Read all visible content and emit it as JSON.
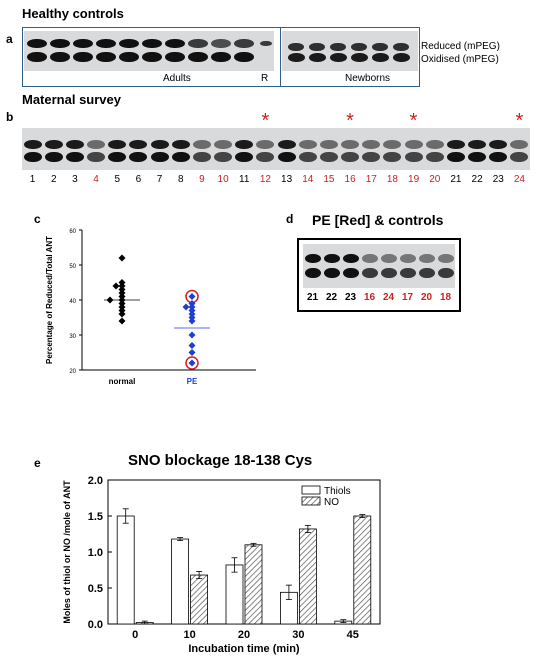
{
  "panels": {
    "a": {
      "letter": "a",
      "title": "Healthy controls",
      "legend": [
        "Reduced (mPEG)",
        "Oxidised (mPEG)"
      ],
      "labels": {
        "adults": "Adults",
        "reference": "R",
        "newborns": "Newborns"
      }
    },
    "b": {
      "letter": "b",
      "title": "Maternal survey",
      "lanes": [
        {
          "n": "1",
          "red": false
        },
        {
          "n": "2",
          "red": false
        },
        {
          "n": "3",
          "red": false
        },
        {
          "n": "4",
          "red": true
        },
        {
          "n": "5",
          "red": false
        },
        {
          "n": "6",
          "red": false
        },
        {
          "n": "7",
          "red": false
        },
        {
          "n": "8",
          "red": false
        },
        {
          "n": "9",
          "red": true
        },
        {
          "n": "10",
          "red": true
        },
        {
          "n": "11",
          "red": false
        },
        {
          "n": "12",
          "red": true
        },
        {
          "n": "13",
          "red": false
        },
        {
          "n": "14",
          "red": true
        },
        {
          "n": "15",
          "red": true
        },
        {
          "n": "16",
          "red": true
        },
        {
          "n": "17",
          "red": true
        },
        {
          "n": "18",
          "red": true
        },
        {
          "n": "19",
          "red": true
        },
        {
          "n": "20",
          "red": true
        },
        {
          "n": "21",
          "red": false
        },
        {
          "n": "22",
          "red": false
        },
        {
          "n": "23",
          "red": false
        },
        {
          "n": "24",
          "red": true
        }
      ],
      "asterisk": "*",
      "asterisk_lanes": [
        "12",
        "16",
        "19",
        "24"
      ]
    },
    "c": {
      "letter": "c",
      "chart_data": {
        "type": "scatter",
        "ylabel": "Percentage of Reduced/Total ANT",
        "ylim": [
          20,
          60
        ],
        "yticks": [
          "20",
          "30",
          "40",
          "50",
          "60"
        ],
        "categories": [
          "normal",
          "PE"
        ],
        "colors": {
          "normal": "#000000",
          "PE": "#1f3fd0",
          "circle": "#d22020"
        },
        "series": [
          {
            "category": "normal",
            "values": [
              52,
              45,
              44,
              44,
              43,
              42,
              41,
              40,
              40,
              39,
              38,
              37,
              36,
              34
            ],
            "mean": 40
          },
          {
            "category": "PE",
            "values": [
              41,
              39,
              38,
              38,
              37,
              36,
              35,
              34,
              30,
              27,
              25,
              22
            ],
            "mean": 32,
            "circled": [
              41,
              22
            ]
          }
        ]
      }
    },
    "d": {
      "letter": "d",
      "title": "PE [Red] & controls",
      "lanes": [
        {
          "n": "21",
          "red": false
        },
        {
          "n": "22",
          "red": false
        },
        {
          "n": "23",
          "red": false
        },
        {
          "n": "16",
          "red": true
        },
        {
          "n": "24",
          "red": true
        },
        {
          "n": "17",
          "red": true
        },
        {
          "n": "20",
          "red": true
        },
        {
          "n": "18",
          "red": true
        }
      ]
    },
    "e": {
      "letter": "e",
      "chart_data": {
        "type": "bar",
        "title": "SNO blockage 18-138 Cys",
        "xlabel": "Incubation time (min)",
        "ylabel": "Moles of thiol or NO /mole of ANT",
        "categories": [
          "0",
          "10",
          "20",
          "30",
          "45"
        ],
        "ylim": [
          0,
          2.0
        ],
        "yticks": [
          "0.0",
          "0.5",
          "1.0",
          "1.5",
          "2.0"
        ],
        "series": [
          {
            "name": "Thiols",
            "values": [
              1.5,
              1.18,
              0.82,
              0.44,
              0.04
            ],
            "errors": [
              0.1,
              0.02,
              0.1,
              0.1,
              0.02
            ]
          },
          {
            "name": "NO",
            "values": [
              0.02,
              0.68,
              1.1,
              1.32,
              1.5
            ],
            "errors": [
              0.02,
              0.05,
              0.02,
              0.05,
              0.02
            ]
          }
        ],
        "legend_position": "top-right"
      }
    }
  }
}
